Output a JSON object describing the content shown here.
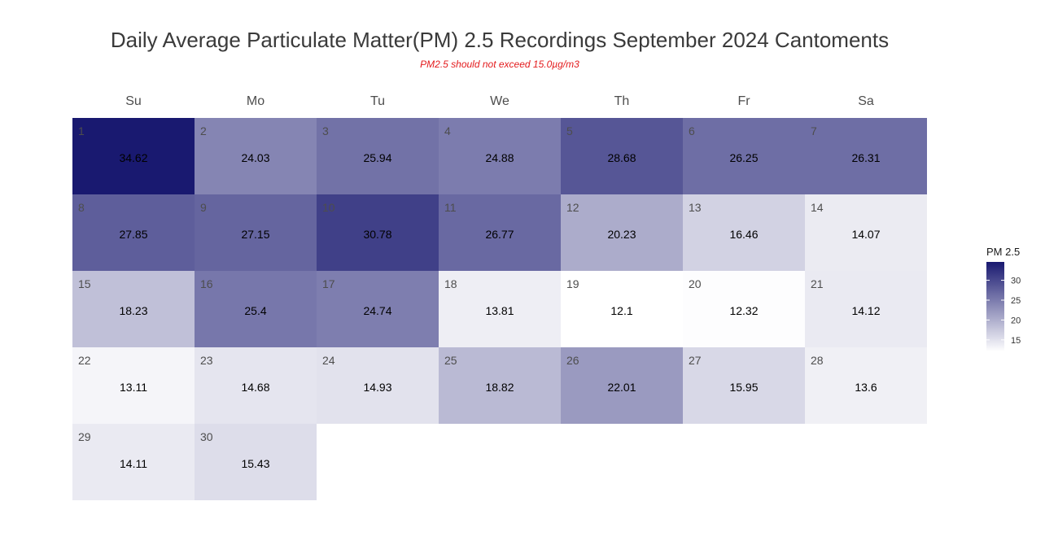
{
  "chart_data": {
    "type": "heatmap",
    "title": "Daily Average Particulate Matter(PM) 2.5 Recordings September 2024 Cantoments",
    "subtitle": "PM2.5 should not exceed 15.0µg/m3",
    "subtitle_color": "#e31a1c",
    "weekdays": [
      "Su",
      "Mo",
      "Tu",
      "We",
      "Th",
      "Fr",
      "Sa"
    ],
    "first_weekday_index": 0,
    "days": [
      1,
      2,
      3,
      4,
      5,
      6,
      7,
      8,
      9,
      10,
      11,
      12,
      13,
      14,
      15,
      16,
      17,
      18,
      19,
      20,
      21,
      22,
      23,
      24,
      25,
      26,
      27,
      28,
      29,
      30
    ],
    "values": [
      34.62,
      24.03,
      25.94,
      24.88,
      28.68,
      26.25,
      26.31,
      27.85,
      27.15,
      30.78,
      26.77,
      20.23,
      16.46,
      14.07,
      18.23,
      25.4,
      24.74,
      13.81,
      12.1,
      12.32,
      14.12,
      13.11,
      14.68,
      14.93,
      18.82,
      22.01,
      15.95,
      13.6,
      14.11,
      15.43
    ],
    "value_labels": [
      "34.62",
      "24.03",
      "25.94",
      "24.88",
      "28.68",
      "26.25",
      "26.31",
      "27.85",
      "27.15",
      "30.78",
      "26.77",
      "20.23",
      "16.46",
      "14.07",
      "18.23",
      "25.4",
      "24.74",
      "13.81",
      "12.1",
      "12.32",
      "14.12",
      "13.11",
      "14.68",
      "14.93",
      "18.82",
      "22.01",
      "15.95",
      "13.6",
      "14.11",
      "15.43"
    ],
    "color_scale": {
      "min": 12.1,
      "max": 34.62,
      "low_color": "#ffffff",
      "high_color": "#191970"
    },
    "legend": {
      "title": "PM 2.5",
      "ticks": [
        15,
        20,
        25,
        30
      ],
      "tick_labels": [
        "15",
        "20",
        "25",
        "30"
      ],
      "placement": "right"
    }
  }
}
